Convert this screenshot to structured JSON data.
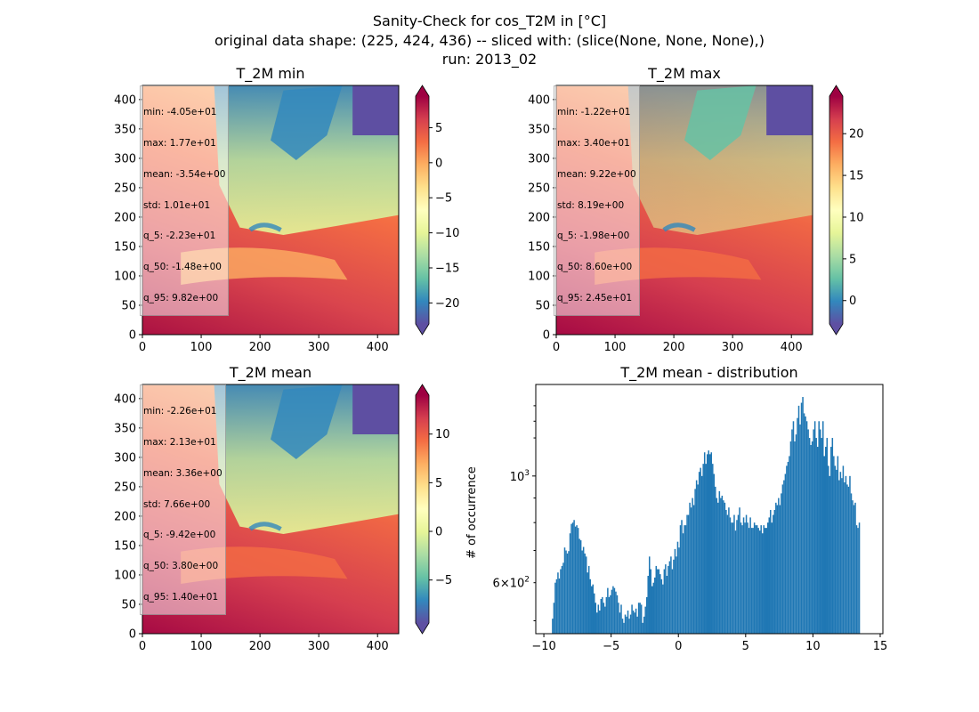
{
  "figure": {
    "title_line1": "Sanity-Check for cos_T2M in [°C]",
    "title_line2": "original data shape: (225, 424, 436) -- sliced with: (slice(None, None, None),)",
    "title_line3": "run: 2013_02"
  },
  "colors": {
    "hist_bar": "#1f77b4",
    "colormap": "Spectral_r"
  },
  "maps": [
    {
      "title": "T_2M min",
      "stats": [
        "min: -4.05e+01",
        "max: 1.77e+01",
        "mean: -3.54e+00",
        "std: 1.01e+01",
        "q_5: -2.23e+01",
        "q_50: -1.48e+00",
        "q_95: 9.82e+00"
      ],
      "x_ticks": [
        "0",
        "100",
        "200",
        "300",
        "400"
      ],
      "y_ticks": [
        "0",
        "50",
        "100",
        "150",
        "200",
        "250",
        "300",
        "350",
        "400"
      ],
      "colorbar_ticks": [
        5,
        0,
        -5,
        -10,
        -15,
        -20
      ],
      "colorbar_range": [
        -23,
        9.5
      ]
    },
    {
      "title": "T_2M max",
      "stats": [
        "min: -1.22e+01",
        "max: 3.40e+01",
        "mean: 9.22e+00",
        "std: 8.19e+00",
        "q_5: -1.98e+00",
        "q_50: 8.60e+00",
        "q_95: 2.45e+01"
      ],
      "x_ticks": [
        "0",
        "100",
        "200",
        "300",
        "400"
      ],
      "y_ticks": [
        "0",
        "50",
        "100",
        "150",
        "200",
        "250",
        "300",
        "350",
        "400"
      ],
      "colorbar_ticks": [
        20,
        15,
        10,
        5,
        0
      ],
      "colorbar_range": [
        -2.8,
        24.5
      ]
    },
    {
      "title": "T_2M mean",
      "stats": [
        "min: -2.26e+01",
        "max: 2.13e+01",
        "mean: 3.36e+00",
        "std: 7.66e+00",
        "q_5: -9.42e+00",
        "q_50: 3.80e+00",
        "q_95: 1.40e+01"
      ],
      "x_ticks": [
        "0",
        "100",
        "200",
        "300",
        "400"
      ],
      "y_ticks": [
        "0",
        "50",
        "100",
        "150",
        "200",
        "250",
        "300",
        "350",
        "400"
      ],
      "colorbar_ticks": [
        10,
        5,
        0,
        -5
      ],
      "colorbar_range": [
        -9.42,
        14.0
      ]
    }
  ],
  "chart_data": {
    "type": "bar",
    "title": "T_2M mean - distribution",
    "xlabel": "",
    "ylabel": "# of occurrence",
    "yscale": "log",
    "xlim": [
      -10.6,
      15.2
    ],
    "ylim": [
      470,
      1550
    ],
    "x_ticks": [
      "−10",
      "−5",
      "0",
      "5",
      "10",
      "15"
    ],
    "y_tick_major": "10^3",
    "y_tick_minor": "6×10^2",
    "bin_start": -9.4,
    "bin_width": 0.1,
    "values": [
      505,
      545,
      600,
      610,
      630,
      612,
      640,
      650,
      660,
      710,
      700,
      690,
      698,
      760,
      795,
      800,
      810,
      785,
      790,
      780,
      740,
      735,
      700,
      712,
      690,
      680,
      630,
      650,
      610,
      590,
      595,
      570,
      545,
      520,
      540,
      525,
      555,
      560,
      545,
      535,
      560,
      585,
      560,
      565,
      580,
      590,
      585,
      575,
      565,
      545,
      520,
      540,
      505,
      495,
      515,
      510,
      525,
      505,
      515,
      540,
      525,
      520,
      530,
      510,
      545,
      545,
      540,
      495,
      510,
      535,
      560,
      620,
      680,
      640,
      590,
      600,
      615,
      650,
      640,
      640,
      625,
      610,
      595,
      640,
      655,
      620,
      650,
      665,
      680,
      640,
      670,
      705,
      680,
      730,
      710,
      790,
      810,
      760,
      790,
      790,
      830,
      830,
      880,
      860,
      900,
      870,
      940,
      980,
      960,
      1020,
      1040,
      1000,
      1060,
      1120,
      1060,
      1110,
      1130,
      1110,
      1120,
      1060,
      1010,
      950,
      900,
      880,
      930,
      900,
      910,
      890,
      880,
      850,
      830,
      860,
      820,
      800,
      800,
      830,
      770,
      810,
      830,
      860,
      800,
      790,
      820,
      800,
      830,
      800,
      780,
      820,
      780,
      780,
      800,
      790,
      790,
      780,
      770,
      790,
      760,
      790,
      780,
      780,
      800,
      820,
      850,
      800,
      830,
      850,
      880,
      870,
      900,
      870,
      920,
      960,
      980,
      1010,
      1050,
      1070,
      1100,
      1180,
      1250,
      1300,
      1180,
      1220,
      1320,
      1400,
      1280,
      1420,
      1460,
      1350,
      1330,
      1300,
      1250,
      1200,
      1160,
      1180,
      1250,
      1300,
      1200,
      1150,
      1300,
      1250,
      1200,
      1300,
      1100,
      1150,
      1200,
      1050,
      1000,
      1150,
      1200,
      1100,
      1050,
      1030,
      1100,
      980,
      1020,
      990,
      1050,
      970,
      1000,
      960,
      950,
      1000,
      920,
      890,
      870,
      880,
      790,
      780,
      800
    ]
  }
}
